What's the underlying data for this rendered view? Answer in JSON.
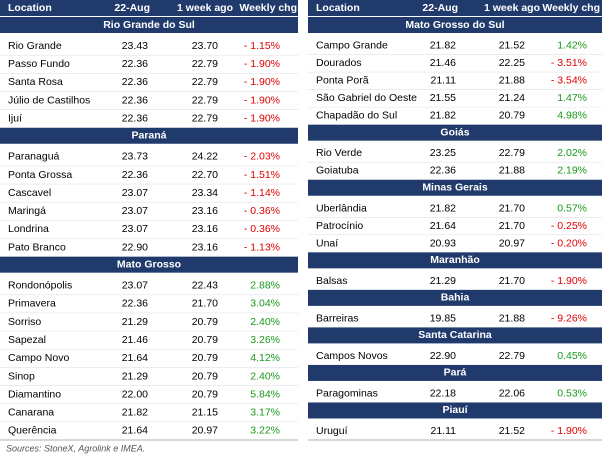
{
  "headers": [
    "Location",
    "22-Aug",
    "1 week ago",
    "Weekly chg"
  ],
  "panels": [
    {
      "sections": [
        {
          "title": "Rio Grande do Sul",
          "rows": [
            [
              "Rio Grande",
              "23.43",
              "23.70",
              "- 1.15%"
            ],
            [
              "Passo Fundo",
              "22.36",
              "22.79",
              "- 1.90%"
            ],
            [
              "Santa Rosa",
              "22.36",
              "22.79",
              "- 1.90%"
            ],
            [
              "Júlio de Castilhos",
              "22.36",
              "22.79",
              "- 1.90%"
            ],
            [
              "Ijuí",
              "22.36",
              "22.79",
              "- 1.90%"
            ]
          ]
        },
        {
          "title": "Paraná",
          "rows": [
            [
              "Paranaguá",
              "23.73",
              "24.22",
              "- 2.03%"
            ],
            [
              "Ponta Grossa",
              "22.36",
              "22.70",
              "- 1.51%"
            ],
            [
              "Cascavel",
              "23.07",
              "23.34",
              "- 1.14%"
            ],
            [
              "Maringá",
              "23.07",
              "23.16",
              "- 0.36%"
            ],
            [
              "Londrina",
              "23.07",
              "23.16",
              "- 0.36%"
            ],
            [
              "Pato Branco",
              "22.90",
              "23.16",
              "- 1.13%"
            ]
          ]
        },
        {
          "title": "Mato Grosso",
          "rows": [
            [
              "Rondonópolis",
              "23.07",
              "22.43",
              "2.88%"
            ],
            [
              "Primavera",
              "22.36",
              "21.70",
              "3.04%"
            ],
            [
              "Sorriso",
              "21.29",
              "20.79",
              "2.40%"
            ],
            [
              "Sapezal",
              "21.46",
              "20.79",
              "3.26%"
            ],
            [
              "Campo Novo",
              "21.64",
              "20.79",
              "4.12%"
            ],
            [
              "Sinop",
              "21.29",
              "20.79",
              "2.40%"
            ],
            [
              "Diamantino",
              "22.00",
              "20.79",
              "5.84%"
            ],
            [
              "Canarana",
              "21.82",
              "21.15",
              "3.17%"
            ],
            [
              "Querência",
              "21.64",
              "20.97",
              "3.22%"
            ]
          ]
        }
      ]
    },
    {
      "sections": [
        {
          "title": "Mato Grosso do Sul",
          "rows": [
            [
              "Campo Grande",
              "21.82",
              "21.52",
              "1.42%"
            ],
            [
              "Dourados",
              "21.46",
              "22.25",
              "- 3.51%"
            ],
            [
              "Ponta Porã",
              "21.11",
              "21.88",
              "- 3.54%"
            ],
            [
              "São Gabriel do Oeste",
              "21.55",
              "21.24",
              "1.47%"
            ],
            [
              "Chapadão do Sul",
              "21.82",
              "20.79",
              "4.98%"
            ]
          ]
        },
        {
          "title": "Goiás",
          "rows": [
            [
              "Rio Verde",
              "23.25",
              "22.79",
              "2.02%"
            ],
            [
              "Goiatuba",
              "22.36",
              "21.88",
              "2.19%"
            ]
          ]
        },
        {
          "title": "Minas Gerais",
          "rows": [
            [
              "Uberlândia",
              "21.82",
              "21.70",
              "0.57%"
            ],
            [
              "Patrocínio",
              "21.64",
              "21.70",
              "- 0.25%"
            ],
            [
              "Unaí",
              "20.93",
              "20.97",
              "- 0.20%"
            ]
          ]
        },
        {
          "title": "Maranhão",
          "rows": [
            [
              "Balsas",
              "21.29",
              "21.70",
              "- 1.90%"
            ]
          ]
        },
        {
          "title": "Bahia",
          "rows": [
            [
              "Barreiras",
              "19.85",
              "21.88",
              "- 9.26%"
            ]
          ]
        },
        {
          "title": "Santa Catarina",
          "rows": [
            [
              "Campos Novos",
              "22.90",
              "22.79",
              "0.45%"
            ]
          ]
        },
        {
          "title": "Pará",
          "rows": [
            [
              "Paragominas",
              "22.18",
              "22.06",
              "0.53%"
            ]
          ]
        },
        {
          "title": "Piauí",
          "rows": [
            [
              "Uruguí",
              "21.11",
              "21.52",
              "- 1.90%"
            ]
          ]
        }
      ]
    }
  ],
  "footnote": "Sources: StoneX, Agrolink e IMEA."
}
